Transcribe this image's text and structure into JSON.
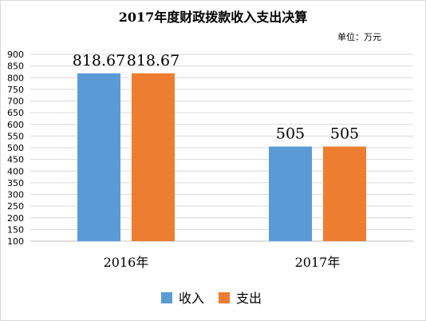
{
  "chart_data": {
    "type": "bar",
    "title": "2017年度财政拨款收入支出决算",
    "unit_note": "单位：万元",
    "categories": [
      "2016年",
      "2017年"
    ],
    "series": [
      {
        "name": "收入",
        "values": [
          818.67,
          505
        ],
        "labels": [
          "818.67",
          "505"
        ],
        "color": "#5b9bd5"
      },
      {
        "name": "支出",
        "values": [
          818.67,
          505
        ],
        "labels": [
          "818.67",
          "505"
        ],
        "color": "#ed7d31"
      }
    ],
    "ylim": [
      100,
      900
    ],
    "yticks": [
      "100",
      "150",
      "200",
      "250",
      "300",
      "350",
      "400",
      "450",
      "500",
      "550",
      "600",
      "650",
      "700",
      "750",
      "800",
      "850",
      "900"
    ],
    "grid": true,
    "legend": "bottom",
    "xlabel": "",
    "ylabel": ""
  },
  "colors": {
    "grid": "#d9d9d9",
    "axis": "#bfbfbf"
  }
}
